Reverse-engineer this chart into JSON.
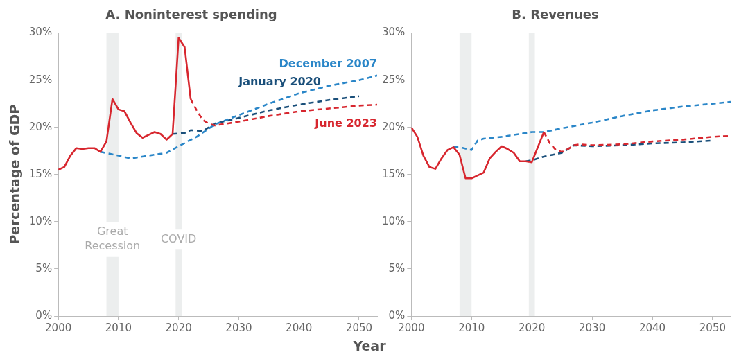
{
  "chart_data": [
    {
      "type": "line",
      "title": "A. Noninterest spending",
      "xlabel": "Year",
      "ylabel": "Percentage of GDP",
      "xlim": [
        2000,
        2053
      ],
      "xticks": [
        2000,
        2010,
        2020,
        2030,
        2040,
        2050
      ],
      "ylim": [
        0,
        30
      ],
      "yticks": [
        {
          "value": 0,
          "label": "0%"
        },
        {
          "value": 5,
          "label": "5%"
        },
        {
          "value": 10,
          "label": "10%"
        },
        {
          "value": 15,
          "label": "15%"
        },
        {
          "value": 20,
          "label": "20%"
        },
        {
          "value": 25,
          "label": "25%"
        },
        {
          "value": 30,
          "label": "30%"
        }
      ],
      "bands": [
        {
          "axis": "x",
          "from": 2008,
          "to": 2010,
          "label": "Great Recession",
          "color": "#eceeee"
        },
        {
          "axis": "x",
          "from": 2019.5,
          "to": 2020.5,
          "label": "COVID",
          "color": "#eceeee"
        }
      ],
      "series": [
        {
          "color": "#d7262e",
          "line_style": "solid",
          "x": [
            2000,
            2001,
            2002,
            2003,
            2004,
            2005,
            2006,
            2007,
            2008,
            2009,
            2010,
            2011,
            2012,
            2013,
            2014,
            2015,
            2016,
            2017,
            2018,
            2019,
            2020,
            2021,
            2022
          ],
          "values": [
            15.5,
            15.8,
            17.0,
            17.8,
            17.7,
            17.8,
            17.8,
            17.4,
            18.5,
            23.0,
            21.9,
            21.7,
            20.5,
            19.4,
            18.9,
            19.2,
            19.5,
            19.3,
            18.7,
            19.3,
            29.5,
            28.5,
            23.0
          ]
        },
        {
          "name": "June 2023",
          "color": "#d7262e",
          "line_style": "dashed",
          "x": [
            2022,
            2023,
            2024,
            2025,
            2026,
            2027,
            2028,
            2030,
            2035,
            2040,
            2045,
            2050,
            2053
          ],
          "values": [
            23.0,
            21.8,
            20.8,
            20.4,
            20.2,
            20.3,
            20.4,
            20.6,
            21.2,
            21.7,
            22.0,
            22.3,
            22.4
          ]
        },
        {
          "name": "December 2007",
          "color": "#2a86c8",
          "line_style": "dashed",
          "x": [
            2007,
            2010,
            2012,
            2015,
            2018,
            2020,
            2023,
            2026,
            2030,
            2035,
            2040,
            2045,
            2050,
            2053
          ],
          "values": [
            17.4,
            17.0,
            16.7,
            17.0,
            17.3,
            18.0,
            19.0,
            20.3,
            21.3,
            22.5,
            23.6,
            24.4,
            25.0,
            25.5
          ]
        },
        {
          "name": "January 2020",
          "color": "#1a4f7a",
          "line_style": "dashed",
          "x": [
            2019,
            2021,
            2022,
            2024,
            2026,
            2030,
            2035,
            2040,
            2045,
            2050
          ],
          "values": [
            19.3,
            19.4,
            19.7,
            19.6,
            20.4,
            21.0,
            21.8,
            22.4,
            22.9,
            23.3
          ]
        }
      ]
    },
    {
      "type": "line",
      "title": "B. Revenues",
      "xlim": [
        2000,
        2053
      ],
      "xticks": [
        2000,
        2010,
        2020,
        2030,
        2040,
        2050
      ],
      "ylim": [
        0,
        30
      ],
      "yticks": [
        {
          "value": 0,
          "label": "0%"
        },
        {
          "value": 5,
          "label": "5%"
        },
        {
          "value": 10,
          "label": "10%"
        },
        {
          "value": 15,
          "label": "15%"
        },
        {
          "value": 20,
          "label": "20%"
        },
        {
          "value": 25,
          "label": "25%"
        },
        {
          "value": 30,
          "label": "30%"
        }
      ],
      "bands": [
        {
          "axis": "x",
          "from": 2008,
          "to": 2010,
          "color": "#eceeee"
        },
        {
          "axis": "x",
          "from": 2019.5,
          "to": 2020.5,
          "color": "#eceeee"
        }
      ],
      "series": [
        {
          "color": "#d7262e",
          "line_style": "solid",
          "x": [
            2000,
            2001,
            2002,
            2003,
            2004,
            2005,
            2006,
            2007,
            2008,
            2009,
            2010,
            2011,
            2012,
            2013,
            2014,
            2015,
            2016,
            2017,
            2018,
            2019,
            2020,
            2021,
            2022
          ],
          "values": [
            20.0,
            19.0,
            17.0,
            15.8,
            15.6,
            16.7,
            17.6,
            17.9,
            17.1,
            14.6,
            14.6,
            14.9,
            15.2,
            16.7,
            17.4,
            18.0,
            17.7,
            17.3,
            16.4,
            16.4,
            16.3,
            17.9,
            19.5
          ]
        },
        {
          "color": "#d7262e",
          "line_style": "dashed",
          "x": [
            2022,
            2023,
            2024,
            2025,
            2026,
            2027,
            2028,
            2030,
            2035,
            2040,
            2045,
            2050,
            2053
          ],
          "values": [
            19.5,
            18.3,
            17.6,
            17.4,
            17.7,
            18.1,
            18.2,
            18.1,
            18.2,
            18.5,
            18.7,
            19.0,
            19.1
          ]
        },
        {
          "color": "#2a86c8",
          "line_style": "dashed",
          "x": [
            2007,
            2008,
            2010,
            2011,
            2012,
            2015,
            2018,
            2020,
            2022,
            2025,
            2030,
            2035,
            2040,
            2045,
            2050,
            2053
          ],
          "values": [
            17.9,
            17.9,
            17.6,
            18.6,
            18.8,
            19.0,
            19.3,
            19.5,
            19.5,
            19.9,
            20.5,
            21.2,
            21.8,
            22.2,
            22.5,
            22.7
          ]
        },
        {
          "color": "#1a4f7a",
          "line_style": "dashed",
          "x": [
            2019,
            2020,
            2022,
            2025,
            2027,
            2030,
            2035,
            2040,
            2045,
            2050
          ],
          "values": [
            16.4,
            16.5,
            16.9,
            17.3,
            18.1,
            18.0,
            18.1,
            18.3,
            18.4,
            18.6
          ]
        }
      ]
    }
  ]
}
